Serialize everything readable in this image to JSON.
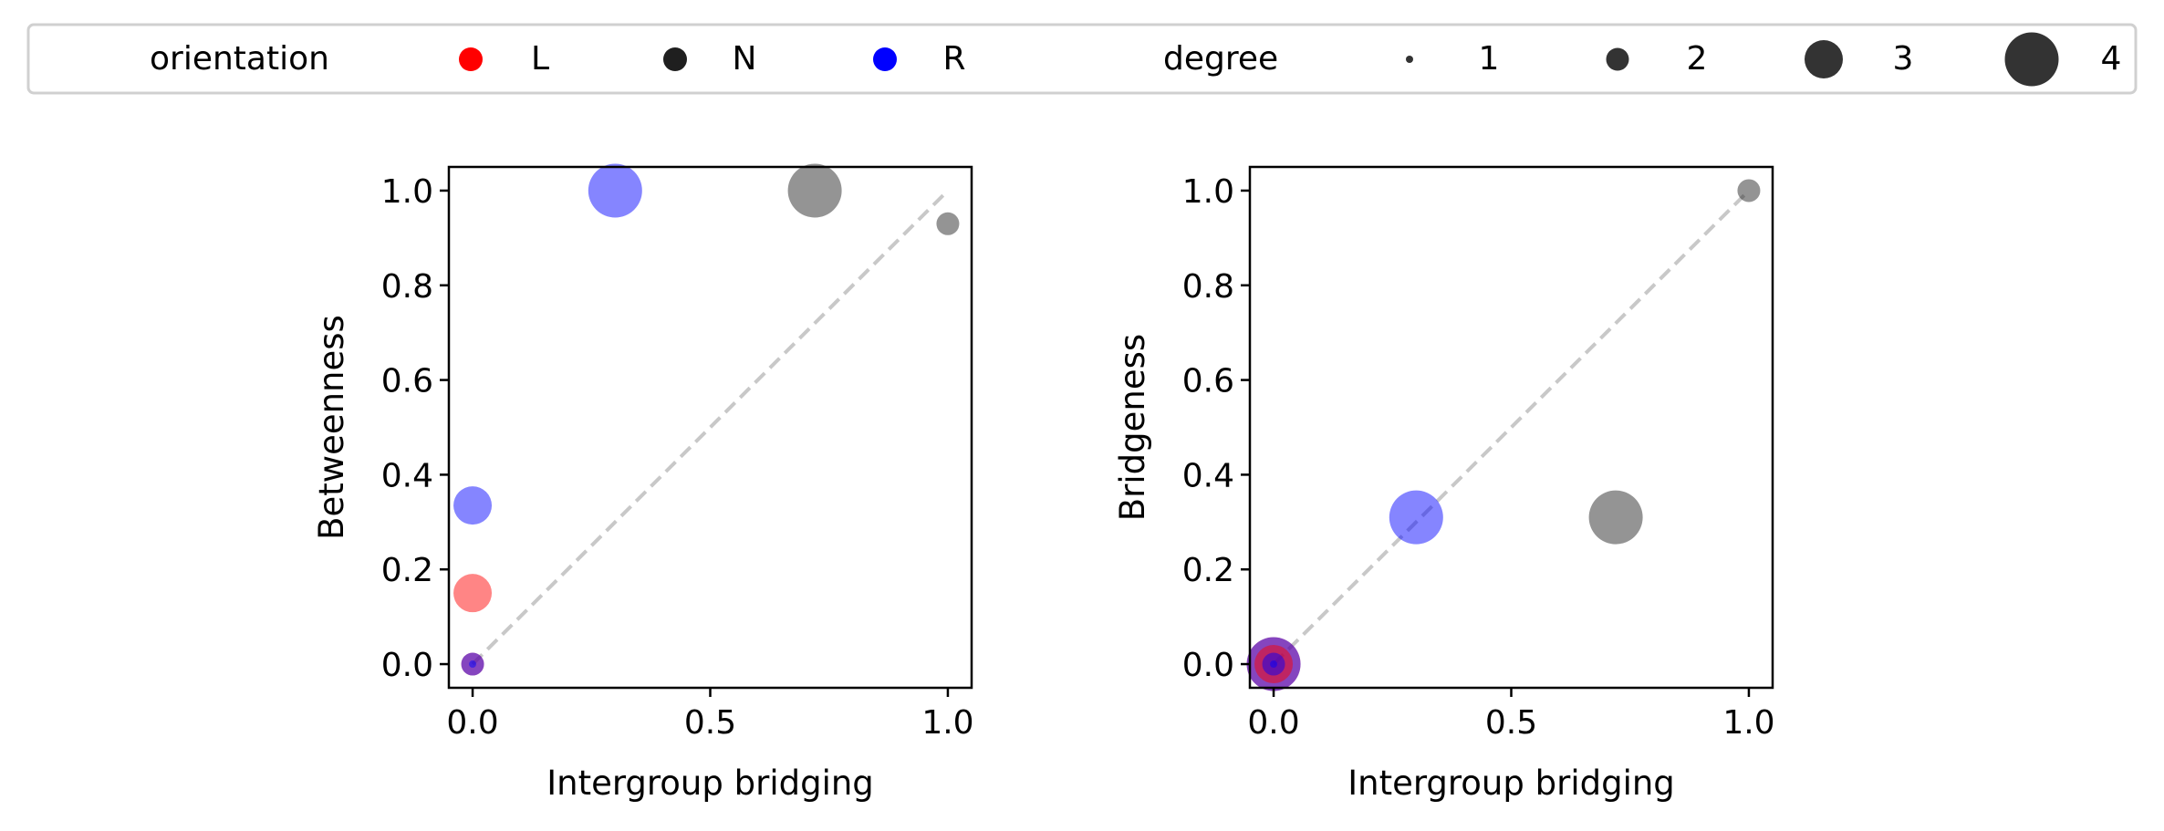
{
  "legend": {
    "orientation_title": "orientation",
    "orientation_items": [
      {
        "label": "L",
        "color": "#ff0000"
      },
      {
        "label": "N",
        "color": "#1f1f1f"
      },
      {
        "label": "R",
        "color": "#0000ff"
      }
    ],
    "degree_title": "degree",
    "degree_items": [
      {
        "label": "1",
        "degree": 1
      },
      {
        "label": "2",
        "degree": 2
      },
      {
        "label": "3",
        "degree": 3
      },
      {
        "label": "4",
        "degree": 4
      }
    ]
  },
  "chart_data": [
    {
      "type": "scatter",
      "xlabel": "Intergroup bridging",
      "ylabel": "Betweenness",
      "xlim": [
        -0.05,
        1.05
      ],
      "ylim": [
        -0.05,
        1.05
      ],
      "xticks": [
        0.0,
        0.5,
        1.0
      ],
      "xtick_labels": [
        "0.0",
        "0.5",
        "1.0"
      ],
      "yticks": [
        0.0,
        0.2,
        0.4,
        0.6,
        0.8,
        1.0
      ],
      "ytick_labels": [
        "0.0",
        "0.2",
        "0.4",
        "0.6",
        "0.8",
        "1.0"
      ],
      "reference_line": {
        "x": [
          0,
          1
        ],
        "y": [
          0,
          1
        ],
        "style": "dashed",
        "color": "#c8c8c8"
      },
      "points": [
        {
          "x": 0.3,
          "y": 1.0,
          "orientation": "R",
          "degree": 4
        },
        {
          "x": 0.72,
          "y": 1.0,
          "orientation": "N",
          "degree": 4
        },
        {
          "x": 1.0,
          "y": 0.93,
          "orientation": "N",
          "degree": 2
        },
        {
          "x": 0.0,
          "y": 0.335,
          "orientation": "R",
          "degree": 3
        },
        {
          "x": 0.0,
          "y": 0.15,
          "orientation": "L",
          "degree": 3
        },
        {
          "x": 0.0,
          "y": 0.0,
          "orientation": "L",
          "degree": 2
        },
        {
          "x": 0.0,
          "y": 0.0,
          "orientation": "R",
          "degree": 2
        },
        {
          "x": 0.0,
          "y": 0.0,
          "orientation": "R",
          "degree": 1
        }
      ]
    },
    {
      "type": "scatter",
      "xlabel": "Intergroup bridging",
      "ylabel": "Bridgeness",
      "xlim": [
        -0.05,
        1.05
      ],
      "ylim": [
        -0.05,
        1.05
      ],
      "xticks": [
        0.0,
        0.5,
        1.0
      ],
      "xtick_labels": [
        "0.0",
        "0.5",
        "1.0"
      ],
      "yticks": [
        0.0,
        0.2,
        0.4,
        0.6,
        0.8,
        1.0
      ],
      "ytick_labels": [
        "0.0",
        "0.2",
        "0.4",
        "0.6",
        "0.8",
        "1.0"
      ],
      "reference_line": {
        "x": [
          0,
          1
        ],
        "y": [
          0,
          1
        ],
        "style": "dashed",
        "color": "#c8c8c8"
      },
      "points": [
        {
          "x": 1.0,
          "y": 1.0,
          "orientation": "N",
          "degree": 2
        },
        {
          "x": 0.3,
          "y": 0.31,
          "orientation": "R",
          "degree": 4
        },
        {
          "x": 0.72,
          "y": 0.31,
          "orientation": "N",
          "degree": 4
        },
        {
          "x": 0.0,
          "y": 0.0,
          "orientation": "L",
          "degree": 4
        },
        {
          "x": 0.0,
          "y": 0.0,
          "orientation": "R",
          "degree": 4
        },
        {
          "x": 0.0,
          "y": 0.0,
          "orientation": "L",
          "degree": 3
        },
        {
          "x": 0.0,
          "y": 0.0,
          "orientation": "R",
          "degree": 2
        },
        {
          "x": 0.0,
          "y": 0.0,
          "orientation": "R",
          "degree": 1
        }
      ]
    }
  ]
}
